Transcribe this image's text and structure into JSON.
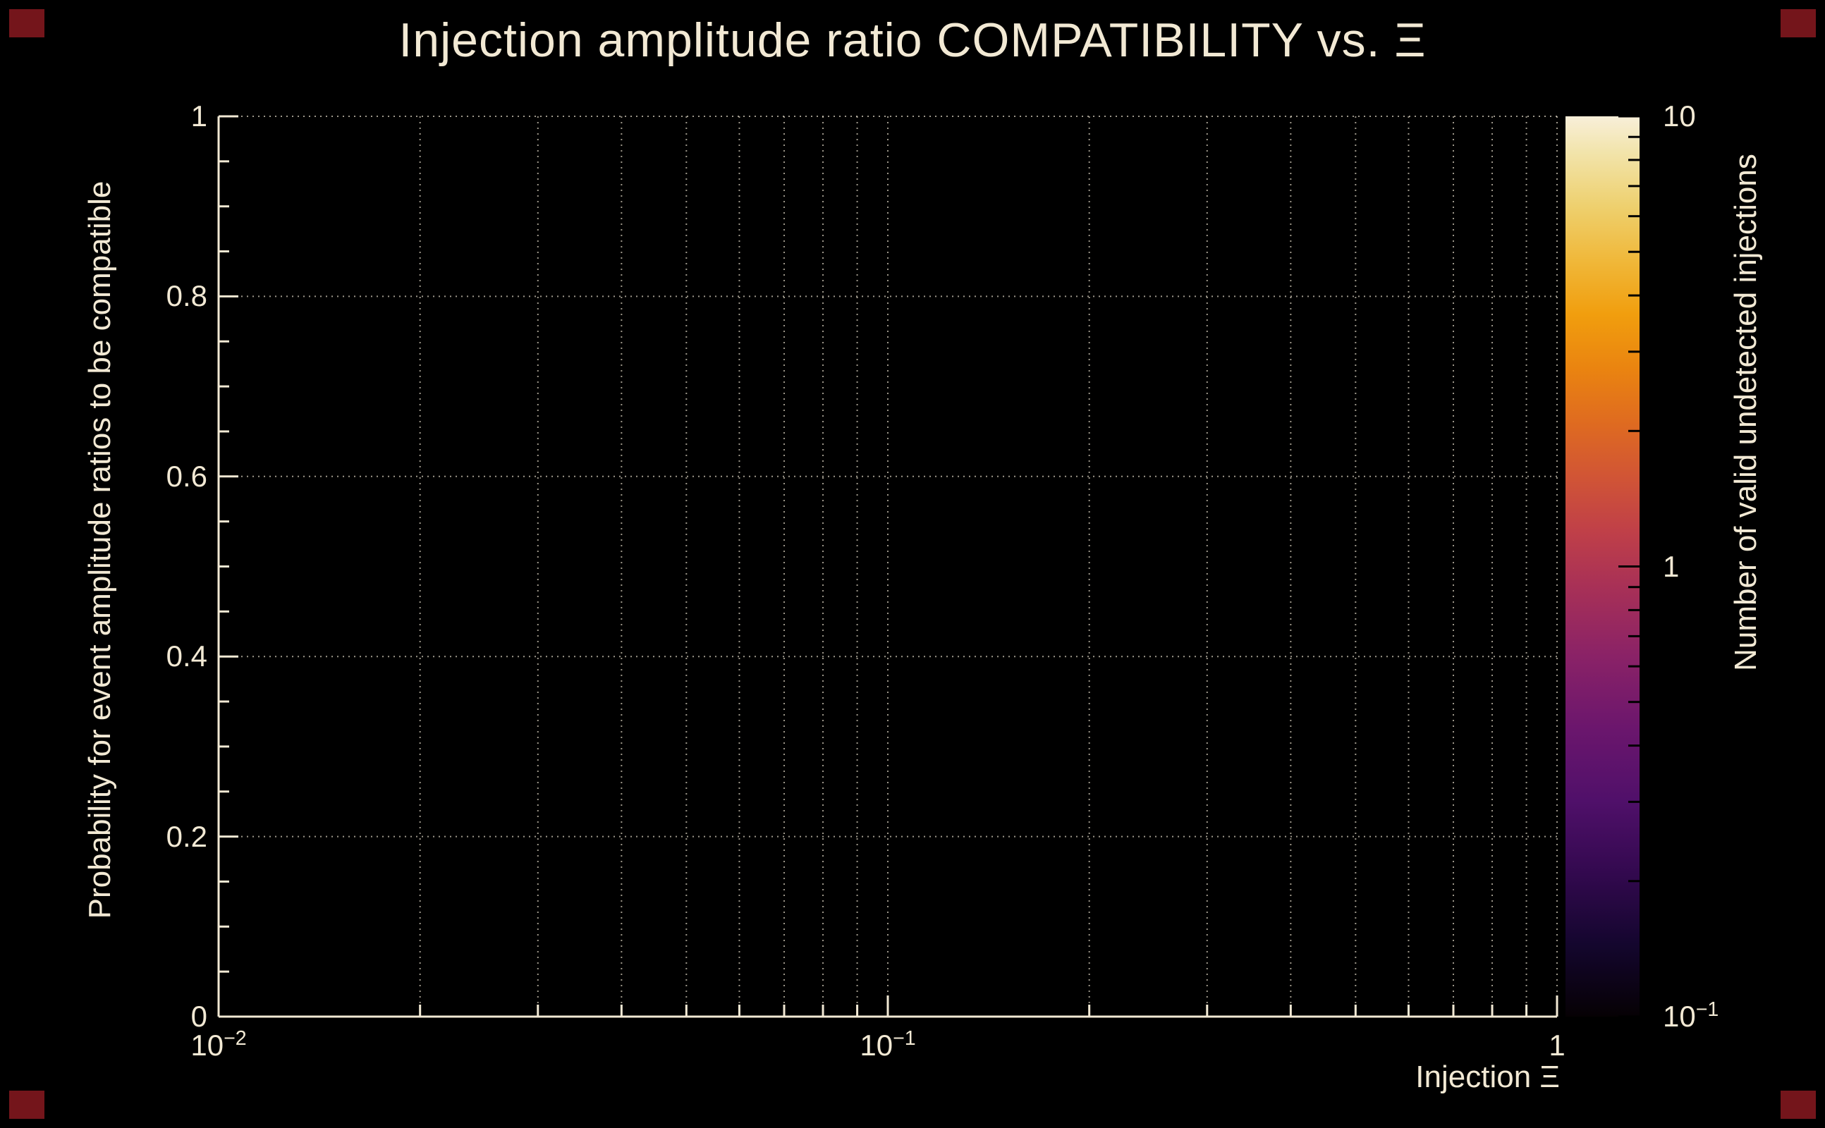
{
  "page": {
    "background": "#000000",
    "text_color": "#f2e9d4",
    "axis_color": "#f2e9d4",
    "grid_color": "#f2e9d4"
  },
  "decor": {
    "corner_color": "#74151b"
  },
  "chart_data": {
    "type": "heatmap",
    "title": "Injection amplitude ratio COMPATIBILITY vs.  Ξ",
    "xlabel": "Injection Ξ",
    "ylabel": "Probability for event amplitude ratios to be compatible",
    "grid": true,
    "x_scale": "log",
    "xlim": [
      0.01,
      1
    ],
    "ylim": [
      0,
      1
    ],
    "x_tick_labels": [
      {
        "value": 0.01,
        "base": "10",
        "exp": "−2"
      },
      {
        "value": 0.1,
        "base": "10",
        "exp": "−1"
      },
      {
        "value": 1,
        "base": "1",
        "exp": ""
      }
    ],
    "y_ticks": [
      0,
      0.2,
      0.4,
      0.6,
      0.8,
      1
    ],
    "y_tick_labels": [
      "0",
      "0.2",
      "0.4",
      "0.6",
      "0.8",
      "1"
    ],
    "values": [],
    "colorbar": {
      "label": "Number of valid undetected injections",
      "scale": "log",
      "range": [
        0.1,
        10
      ],
      "tick_labels": [
        {
          "value": 10,
          "base": "10",
          "exp": ""
        },
        {
          "value": 1,
          "base": "1",
          "exp": ""
        },
        {
          "value": 0.1,
          "base": "10",
          "exp": "−1"
        }
      ],
      "gradient_stops": [
        {
          "pos": 0,
          "color": "#060104"
        },
        {
          "pos": 8,
          "color": "#14062e"
        },
        {
          "pos": 16,
          "color": "#33094f"
        },
        {
          "pos": 24,
          "color": "#50106a"
        },
        {
          "pos": 32,
          "color": "#6b166d"
        },
        {
          "pos": 40,
          "color": "#8a2267"
        },
        {
          "pos": 48,
          "color": "#a93156"
        },
        {
          "pos": 54,
          "color": "#c04048"
        },
        {
          "pos": 60,
          "color": "#d15535"
        },
        {
          "pos": 66,
          "color": "#df6b20"
        },
        {
          "pos": 72,
          "color": "#ea8410"
        },
        {
          "pos": 78,
          "color": "#f19e0e"
        },
        {
          "pos": 84,
          "color": "#f0b83a"
        },
        {
          "pos": 90,
          "color": "#eed06e"
        },
        {
          "pos": 96,
          "color": "#f2e4ab"
        },
        {
          "pos": 100,
          "color": "#f8efd9"
        }
      ]
    }
  }
}
